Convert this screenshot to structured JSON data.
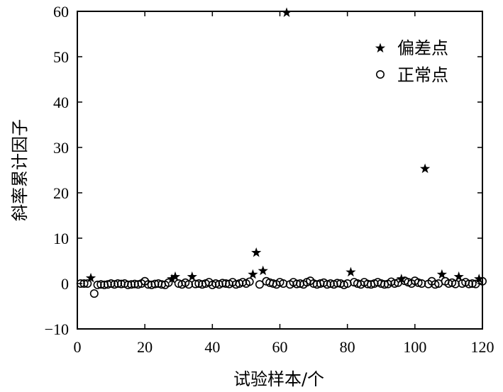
{
  "chart_data": {
    "type": "scatter",
    "xlabel": "试验样本/个",
    "ylabel": "斜率累计因子",
    "xlim": [
      0,
      120
    ],
    "ylim": [
      -10,
      60
    ],
    "xticks": [
      0,
      20,
      40,
      60,
      80,
      100,
      120
    ],
    "yticks": [
      -10,
      0,
      10,
      20,
      30,
      40,
      50,
      60
    ],
    "xtick_labels": [
      "0",
      "20",
      "40",
      "60",
      "80",
      "100",
      "120"
    ],
    "ytick_labels": [
      "−10",
      "0",
      "10",
      "20",
      "30",
      "40",
      "50",
      "60"
    ],
    "grid": false,
    "legend_position": "top-right",
    "series": [
      {
        "name": "偏差点",
        "marker": "star",
        "points": [
          [
            4,
            1.2
          ],
          [
            28,
            1.0
          ],
          [
            29,
            1.5
          ],
          [
            34,
            1.5
          ],
          [
            52,
            2.0
          ],
          [
            53,
            6.8
          ],
          [
            55,
            2.8
          ],
          [
            62,
            59.7
          ],
          [
            81,
            2.5
          ],
          [
            96,
            1.0
          ],
          [
            103,
            25.3
          ],
          [
            108,
            2.0
          ],
          [
            113,
            1.5
          ],
          [
            119,
            1.0
          ]
        ]
      },
      {
        "name": "正常点",
        "marker": "circle",
        "points": [
          [
            1,
            0.0
          ],
          [
            2,
            0.0
          ],
          [
            3,
            0.0
          ],
          [
            5,
            -2.2
          ],
          [
            6,
            -0.3
          ],
          [
            7,
            -0.2
          ],
          [
            8,
            -0.3
          ],
          [
            9,
            -0.2
          ],
          [
            10,
            0.0
          ],
          [
            11,
            -0.2
          ],
          [
            12,
            0.0
          ],
          [
            13,
            -0.1
          ],
          [
            14,
            0.0
          ],
          [
            15,
            -0.3
          ],
          [
            16,
            -0.2
          ],
          [
            17,
            -0.1
          ],
          [
            18,
            -0.2
          ],
          [
            19,
            0.0
          ],
          [
            20,
            0.5
          ],
          [
            21,
            -0.2
          ],
          [
            22,
            -0.3
          ],
          [
            23,
            -0.1
          ],
          [
            24,
            0.0
          ],
          [
            25,
            -0.2
          ],
          [
            26,
            -0.3
          ],
          [
            27,
            0.2
          ],
          [
            30,
            0.0
          ],
          [
            31,
            -0.2
          ],
          [
            32,
            0.2
          ],
          [
            33,
            -0.2
          ],
          [
            35,
            -0.1
          ],
          [
            36,
            0.0
          ],
          [
            37,
            -0.2
          ],
          [
            38,
            0.0
          ],
          [
            39,
            0.3
          ],
          [
            40,
            -0.3
          ],
          [
            41,
            0.0
          ],
          [
            42,
            -0.2
          ],
          [
            43,
            0.1
          ],
          [
            44,
            0.0
          ],
          [
            45,
            -0.1
          ],
          [
            46,
            0.3
          ],
          [
            47,
            -0.2
          ],
          [
            48,
            0.0
          ],
          [
            49,
            0.3
          ],
          [
            50,
            0.0
          ],
          [
            51,
            0.4
          ],
          [
            54,
            -0.2
          ],
          [
            56,
            0.5
          ],
          [
            57,
            0.2
          ],
          [
            58,
            0.0
          ],
          [
            59,
            -0.2
          ],
          [
            60,
            0.3
          ],
          [
            61,
            0.0
          ],
          [
            63,
            -0.2
          ],
          [
            64,
            0.3
          ],
          [
            65,
            -0.1
          ],
          [
            66,
            0.0
          ],
          [
            67,
            -0.2
          ],
          [
            68,
            0.3
          ],
          [
            69,
            0.6
          ],
          [
            70,
            0.0
          ],
          [
            71,
            -0.2
          ],
          [
            72,
            0.0
          ],
          [
            73,
            0.2
          ],
          [
            74,
            -0.2
          ],
          [
            75,
            0.0
          ],
          [
            76,
            -0.2
          ],
          [
            77,
            0.1
          ],
          [
            78,
            0.0
          ],
          [
            79,
            -0.3
          ],
          [
            80,
            0.0
          ],
          [
            82,
            0.3
          ],
          [
            83,
            0.0
          ],
          [
            84,
            -0.2
          ],
          [
            85,
            0.3
          ],
          [
            86,
            -0.1
          ],
          [
            87,
            -0.2
          ],
          [
            88,
            0.0
          ],
          [
            89,
            0.3
          ],
          [
            90,
            0.0
          ],
          [
            91,
            -0.2
          ],
          [
            92,
            -0.1
          ],
          [
            93,
            0.4
          ],
          [
            94,
            0.0
          ],
          [
            95,
            0.2
          ],
          [
            97,
            0.6
          ],
          [
            98,
            0.3
          ],
          [
            99,
            0.0
          ],
          [
            100,
            0.6
          ],
          [
            101,
            0.2
          ],
          [
            102,
            0.0
          ],
          [
            104,
            -0.1
          ],
          [
            105,
            0.5
          ],
          [
            106,
            -0.2
          ],
          [
            107,
            0.0
          ],
          [
            109,
            0.5
          ],
          [
            110,
            0.0
          ],
          [
            111,
            0.2
          ],
          [
            112,
            -0.1
          ],
          [
            114,
            0.0
          ],
          [
            115,
            0.3
          ],
          [
            116,
            -0.1
          ],
          [
            117,
            0.0
          ],
          [
            118,
            -0.1
          ],
          [
            120,
            0.5
          ]
        ]
      }
    ]
  }
}
